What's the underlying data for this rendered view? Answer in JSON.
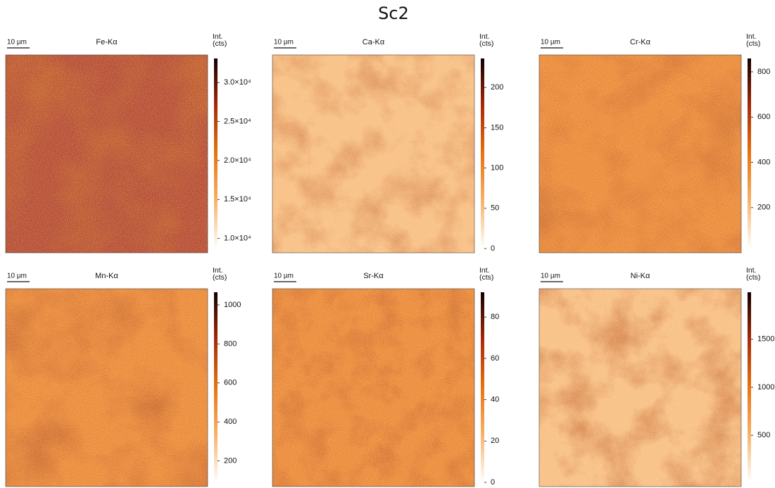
{
  "title": "Sc2",
  "chart_data": [
    {
      "type": "heatmap",
      "title": "Fe-Kα",
      "scale_bar": "10 µm",
      "colorbar_label": [
        "Int.",
        "(cts)"
      ],
      "colormap": [
        "#ffffff",
        "#f7b36a",
        "#e8730f",
        "#a82a08",
        "#120000"
      ],
      "clim": [
        8700,
        33100
      ],
      "cticks": [
        {
          "value": 10000,
          "label": "1.0×10⁴"
        },
        {
          "value": 15000,
          "label": "1.5×10⁴"
        },
        {
          "value": 20000,
          "label": "2.0×10⁴"
        },
        {
          "value": 25000,
          "label": "2.5×10⁴"
        },
        {
          "value": 30000,
          "label": "3.0×10⁴"
        }
      ]
    },
    {
      "type": "heatmap",
      "title": "Ca-Kα",
      "scale_bar": "10 µm",
      "colorbar_label": [
        "Int.",
        "(cts)"
      ],
      "colormap": [
        "#ffffff",
        "#f7b36a",
        "#e8730f",
        "#a82a08",
        "#120000"
      ],
      "clim": [
        0,
        236
      ],
      "cticks": [
        0,
        50,
        100,
        150,
        200
      ]
    },
    {
      "type": "heatmap",
      "title": "Cr-Kα",
      "scale_bar": "10 µm",
      "colorbar_label": [
        "Int.",
        "(cts)"
      ],
      "colormap": [
        "#ffffff",
        "#f7b36a",
        "#e8730f",
        "#a82a08",
        "#120000"
      ],
      "clim": [
        19,
        859
      ],
      "cticks": [
        200,
        400,
        600,
        800
      ]
    },
    {
      "type": "heatmap",
      "title": "Mn-Kα",
      "scale_bar": "10 µm",
      "colorbar_label": [
        "Int.",
        "(cts)"
      ],
      "colormap": [
        "#ffffff",
        "#f7b36a",
        "#e8730f",
        "#a82a08",
        "#120000"
      ],
      "clim": [
        90,
        1065
      ],
      "cticks": [
        200,
        400,
        600,
        800,
        1000
      ]
    },
    {
      "type": "heatmap",
      "title": "Sr-Kα",
      "scale_bar": "10 µm",
      "colorbar_label": [
        "Int.",
        "(cts)"
      ],
      "colormap": [
        "#ffffff",
        "#f7b36a",
        "#e8730f",
        "#a82a08",
        "#120000"
      ],
      "clim": [
        0,
        92
      ],
      "cticks": [
        0,
        20,
        40,
        60,
        80
      ]
    },
    {
      "type": "heatmap",
      "title": "Ni-Kα",
      "scale_bar": "10 µm",
      "colorbar_label": [
        "Int.",
        "(cts)"
      ],
      "colormap": [
        "#ffffff",
        "#f7b36a",
        "#e8730f",
        "#a82a08",
        "#120000"
      ],
      "clim": [
        10,
        1990
      ],
      "cticks": [
        500,
        1000,
        1500
      ]
    }
  ]
}
